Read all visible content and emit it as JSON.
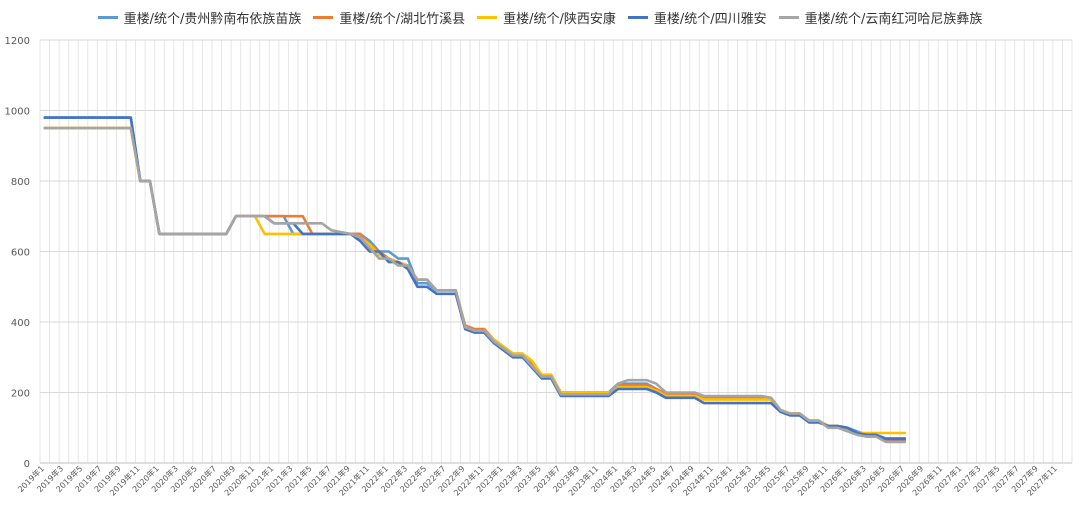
{
  "chart_data": {
    "type": "line",
    "title": "",
    "xlabel": "",
    "ylabel": "",
    "ylim": [
      0,
      1200
    ],
    "y_ticks": [
      0,
      200,
      400,
      600,
      800,
      1000,
      1200
    ],
    "grid": true,
    "legend_position": "top",
    "x_tick_labels": [
      "2019年1",
      "2019年3",
      "2019年5",
      "2019年7",
      "2019年9",
      "2019年11",
      "2020年1",
      "2020年3",
      "2020年5",
      "2020年7",
      "2020年9",
      "2020年11",
      "2021年1",
      "2021年3",
      "2021年5",
      "2021年7",
      "2021年9",
      "2021年11",
      "2022年1",
      "2022年3",
      "2022年5",
      "2022年7",
      "2022年9",
      "2022年11",
      "2023年1",
      "2023年3",
      "2023年5",
      "2023年7",
      "2023年9",
      "2023年11",
      "2024年1",
      "2024年3",
      "2024年5",
      "2024年7",
      "2024年9",
      "2024年11",
      "2025年1",
      "2025年3",
      "2025年5",
      "2025年7",
      "2025年9",
      "2025年11",
      "2026年1",
      "2026年3",
      "2026年5",
      "2026年7",
      "2026年9",
      "2026年11",
      "2027年1",
      "2027年3",
      "2027年5",
      "2027年7",
      "2027年9",
      "2027年11"
    ],
    "series": [
      {
        "name": "重楼/统个/贵州黔南布依族苗族",
        "color": "#5B9BD5",
        "points": [
          [
            0,
            980
          ],
          [
            9,
            980
          ],
          [
            10,
            800
          ],
          [
            11,
            800
          ],
          [
            12,
            650
          ],
          [
            19,
            650
          ],
          [
            20,
            700
          ],
          [
            25,
            700
          ],
          [
            26,
            650
          ],
          [
            32,
            650
          ],
          [
            33,
            650
          ],
          [
            34,
            630
          ],
          [
            35,
            600
          ],
          [
            36,
            600
          ],
          [
            37,
            580
          ],
          [
            38,
            580
          ],
          [
            39,
            510
          ],
          [
            40,
            510
          ],
          [
            41,
            490
          ],
          [
            43,
            490
          ],
          [
            44,
            385
          ],
          [
            45,
            375
          ],
          [
            46,
            375
          ],
          [
            47,
            350
          ],
          [
            49,
            310
          ],
          [
            50,
            310
          ],
          [
            51,
            280
          ],
          [
            52,
            250
          ],
          [
            53,
            250
          ],
          [
            54,
            200
          ],
          [
            59,
            200
          ],
          [
            60,
            225
          ],
          [
            63,
            225
          ],
          [
            64,
            210
          ],
          [
            65,
            195
          ],
          [
            68,
            195
          ],
          [
            69,
            185
          ],
          [
            75,
            185
          ],
          [
            76,
            185
          ],
          [
            77,
            150
          ],
          [
            78,
            140
          ],
          [
            79,
            140
          ],
          [
            80,
            120
          ],
          [
            81,
            120
          ],
          [
            82,
            105
          ],
          [
            83,
            105
          ],
          [
            84,
            100
          ],
          [
            85,
            90
          ],
          [
            86,
            80
          ],
          [
            87,
            80
          ],
          [
            88,
            70
          ],
          [
            90,
            70
          ]
        ]
      },
      {
        "name": "重楼/统个/湖北竹溪县",
        "color": "#ED7D31",
        "points": [
          [
            0,
            950
          ],
          [
            9,
            950
          ],
          [
            10,
            800
          ],
          [
            11,
            800
          ],
          [
            12,
            650
          ],
          [
            19,
            650
          ],
          [
            20,
            700
          ],
          [
            23,
            700
          ],
          [
            24,
            700
          ],
          [
            27,
            700
          ],
          [
            28,
            650
          ],
          [
            32,
            650
          ],
          [
            33,
            650
          ],
          [
            34,
            620
          ],
          [
            35,
            600
          ],
          [
            36,
            580
          ],
          [
            37,
            570
          ],
          [
            38,
            560
          ],
          [
            39,
            520
          ],
          [
            40,
            520
          ],
          [
            41,
            490
          ],
          [
            43,
            490
          ],
          [
            44,
            390
          ],
          [
            45,
            380
          ],
          [
            46,
            380
          ],
          [
            47,
            350
          ],
          [
            49,
            310
          ],
          [
            50,
            310
          ],
          [
            51,
            285
          ],
          [
            52,
            250
          ],
          [
            53,
            250
          ],
          [
            54,
            200
          ],
          [
            59,
            200
          ],
          [
            60,
            220
          ],
          [
            63,
            220
          ],
          [
            64,
            210
          ],
          [
            65,
            195
          ],
          [
            68,
            195
          ],
          [
            69,
            185
          ],
          [
            75,
            185
          ],
          [
            76,
            180
          ],
          [
            77,
            150
          ],
          [
            78,
            140
          ],
          [
            79,
            140
          ],
          [
            80,
            120
          ],
          [
            81,
            120
          ],
          [
            82,
            105
          ],
          [
            83,
            105
          ],
          [
            84,
            95
          ],
          [
            85,
            85
          ],
          [
            86,
            75
          ],
          [
            87,
            75
          ],
          [
            88,
            65
          ],
          [
            90,
            65
          ]
        ]
      },
      {
        "name": "重楼/统个/陕西安康",
        "color": "#FFC000",
        "points": [
          [
            0,
            950
          ],
          [
            9,
            950
          ],
          [
            10,
            800
          ],
          [
            11,
            800
          ],
          [
            12,
            650
          ],
          [
            19,
            650
          ],
          [
            20,
            700
          ],
          [
            22,
            700
          ],
          [
            23,
            650
          ],
          [
            32,
            650
          ],
          [
            33,
            640
          ],
          [
            34,
            620
          ],
          [
            35,
            590
          ],
          [
            36,
            580
          ],
          [
            37,
            570
          ],
          [
            38,
            560
          ],
          [
            39,
            520
          ],
          [
            40,
            520
          ],
          [
            41,
            490
          ],
          [
            43,
            490
          ],
          [
            44,
            385
          ],
          [
            45,
            375
          ],
          [
            46,
            375
          ],
          [
            47,
            350
          ],
          [
            49,
            310
          ],
          [
            50,
            310
          ],
          [
            51,
            290
          ],
          [
            52,
            250
          ],
          [
            53,
            250
          ],
          [
            54,
            200
          ],
          [
            59,
            200
          ],
          [
            60,
            215
          ],
          [
            63,
            215
          ],
          [
            64,
            205
          ],
          [
            65,
            190
          ],
          [
            68,
            190
          ],
          [
            69,
            180
          ],
          [
            75,
            180
          ],
          [
            76,
            180
          ],
          [
            77,
            150
          ],
          [
            78,
            140
          ],
          [
            79,
            140
          ],
          [
            80,
            120
          ],
          [
            81,
            120
          ],
          [
            82,
            105
          ],
          [
            83,
            105
          ],
          [
            84,
            95
          ],
          [
            85,
            85
          ],
          [
            86,
            85
          ],
          [
            90,
            85
          ]
        ]
      },
      {
        "name": "重楼/统个/四川雅安",
        "color": "#4472C4",
        "points": [
          [
            0,
            980
          ],
          [
            9,
            980
          ],
          [
            10,
            800
          ],
          [
            11,
            800
          ],
          [
            12,
            650
          ],
          [
            19,
            650
          ],
          [
            20,
            700
          ],
          [
            23,
            700
          ],
          [
            24,
            680
          ],
          [
            26,
            680
          ],
          [
            27,
            650
          ],
          [
            32,
            650
          ],
          [
            33,
            630
          ],
          [
            34,
            600
          ],
          [
            35,
            600
          ],
          [
            36,
            570
          ],
          [
            37,
            570
          ],
          [
            38,
            550
          ],
          [
            39,
            500
          ],
          [
            40,
            500
          ],
          [
            41,
            480
          ],
          [
            43,
            480
          ],
          [
            44,
            380
          ],
          [
            45,
            370
          ],
          [
            46,
            370
          ],
          [
            47,
            340
          ],
          [
            49,
            300
          ],
          [
            50,
            300
          ],
          [
            51,
            270
          ],
          [
            52,
            240
          ],
          [
            53,
            240
          ],
          [
            54,
            190
          ],
          [
            59,
            190
          ],
          [
            60,
            210
          ],
          [
            63,
            210
          ],
          [
            64,
            200
          ],
          [
            65,
            185
          ],
          [
            68,
            185
          ],
          [
            69,
            170
          ],
          [
            75,
            170
          ],
          [
            76,
            170
          ],
          [
            77,
            145
          ],
          [
            78,
            135
          ],
          [
            79,
            135
          ],
          [
            80,
            115
          ],
          [
            81,
            115
          ],
          [
            82,
            105
          ],
          [
            83,
            105
          ],
          [
            84,
            100
          ],
          [
            85,
            85
          ],
          [
            86,
            80
          ],
          [
            87,
            80
          ],
          [
            88,
            68
          ],
          [
            90,
            68
          ]
        ]
      },
      {
        "name": "重楼/统个/云南红河哈尼族彝族",
        "color": "#A5A5A5",
        "points": [
          [
            0,
            950
          ],
          [
            9,
            950
          ],
          [
            10,
            800
          ],
          [
            11,
            800
          ],
          [
            12,
            650
          ],
          [
            19,
            650
          ],
          [
            20,
            700
          ],
          [
            23,
            700
          ],
          [
            24,
            680
          ],
          [
            29,
            680
          ],
          [
            30,
            660
          ],
          [
            32,
            650
          ],
          [
            33,
            640
          ],
          [
            34,
            610
          ],
          [
            35,
            580
          ],
          [
            36,
            580
          ],
          [
            37,
            560
          ],
          [
            38,
            560
          ],
          [
            39,
            520
          ],
          [
            40,
            520
          ],
          [
            41,
            490
          ],
          [
            43,
            490
          ],
          [
            44,
            385
          ],
          [
            45,
            375
          ],
          [
            46,
            375
          ],
          [
            47,
            345
          ],
          [
            49,
            305
          ],
          [
            50,
            305
          ],
          [
            51,
            275
          ],
          [
            52,
            245
          ],
          [
            53,
            245
          ],
          [
            54,
            195
          ],
          [
            59,
            195
          ],
          [
            60,
            225
          ],
          [
            61,
            235
          ],
          [
            63,
            235
          ],
          [
            64,
            225
          ],
          [
            65,
            200
          ],
          [
            68,
            200
          ],
          [
            69,
            190
          ],
          [
            75,
            190
          ],
          [
            76,
            185
          ],
          [
            77,
            150
          ],
          [
            78,
            140
          ],
          [
            79,
            140
          ],
          [
            80,
            120
          ],
          [
            81,
            120
          ],
          [
            82,
            100
          ],
          [
            83,
            100
          ],
          [
            84,
            90
          ],
          [
            85,
            80
          ],
          [
            86,
            75
          ],
          [
            87,
            75
          ],
          [
            88,
            60
          ],
          [
            90,
            60
          ]
        ]
      }
    ]
  }
}
